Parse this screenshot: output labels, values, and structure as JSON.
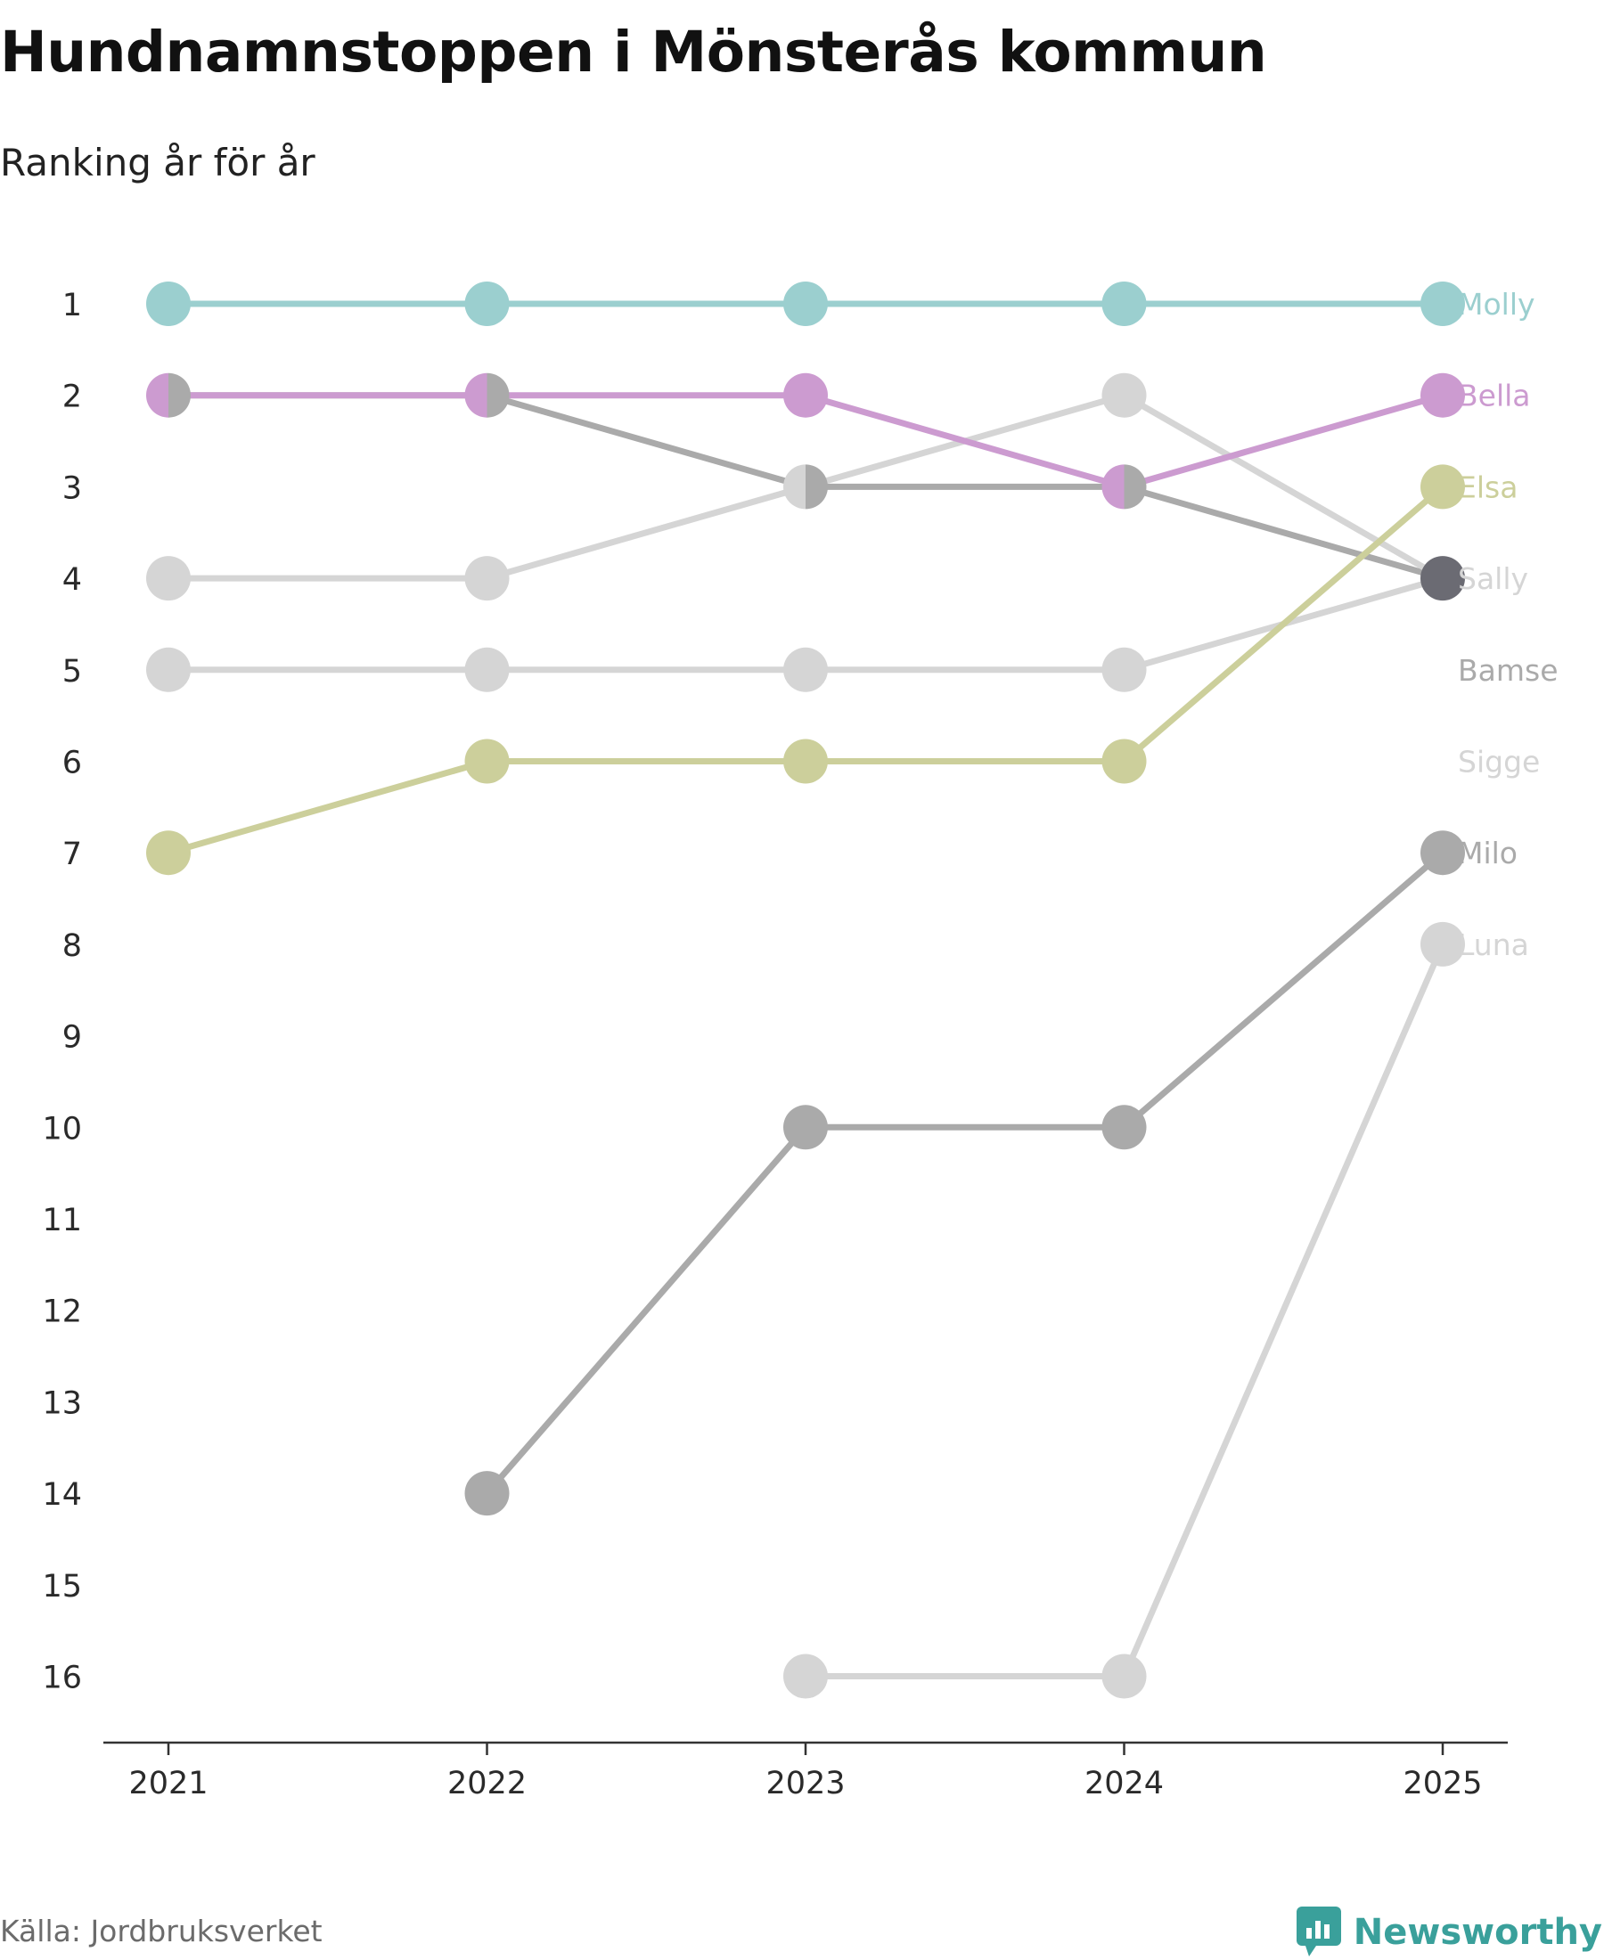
{
  "header": {
    "title": "Hundnamnstoppen i Mönsterås kommun",
    "subtitle": "Ranking år för år"
  },
  "footer": {
    "source": "Källa: Jordbruksverket",
    "brand": "Newsworthy"
  },
  "chart_data": {
    "type": "line",
    "title": "Hundnamnstoppen i Mönsterås kommun",
    "subtitle": "Ranking år för år",
    "xlabel": "",
    "ylabel": "",
    "x": [
      2021,
      2022,
      2023,
      2024,
      2025
    ],
    "y_ticks": [
      1,
      2,
      3,
      4,
      5,
      6,
      7,
      8,
      9,
      10,
      11,
      12,
      13,
      14,
      15,
      16
    ],
    "y_range": [
      1,
      16
    ],
    "y_inverted": true,
    "grid": false,
    "series": [
      {
        "name": "Molly",
        "color": "#9bcfcf",
        "values": [
          1,
          1,
          1,
          1,
          1
        ]
      },
      {
        "name": "Bella",
        "color": "#cc9bd0",
        "values": [
          2,
          2,
          2,
          3,
          2
        ]
      },
      {
        "name": "Elsa",
        "color": "#cccf9b",
        "values": [
          7,
          6,
          6,
          6,
          3
        ]
      },
      {
        "name": "Sally",
        "color": "#d5d5d5",
        "values": [
          4,
          4,
          3,
          2,
          4
        ]
      },
      {
        "name": "Bamse",
        "color": "#aaaaaa",
        "values": [
          2,
          2,
          3,
          3,
          4
        ]
      },
      {
        "name": "Sigge",
        "color": "#d5d5d5",
        "values": [
          5,
          5,
          5,
          5,
          4
        ]
      },
      {
        "name": "Milo",
        "color": "#aaaaaa",
        "values": [
          null,
          14,
          10,
          10,
          7
        ]
      },
      {
        "name": "Luna",
        "color": "#d5d5d5",
        "values": [
          null,
          null,
          16,
          16,
          8
        ]
      }
    ],
    "end_labels": [
      {
        "name": "Molly",
        "rank": 1
      },
      {
        "name": "Bella",
        "rank": 2
      },
      {
        "name": "Elsa",
        "rank": 3
      },
      {
        "name": "Sally",
        "rank": 4
      },
      {
        "name": "Bamse",
        "rank": 5
      },
      {
        "name": "Sigge",
        "rank": 6
      },
      {
        "name": "Milo",
        "rank": 7
      },
      {
        "name": "Luna",
        "rank": 8
      }
    ],
    "tied_marker_color": "#6b6b73"
  }
}
